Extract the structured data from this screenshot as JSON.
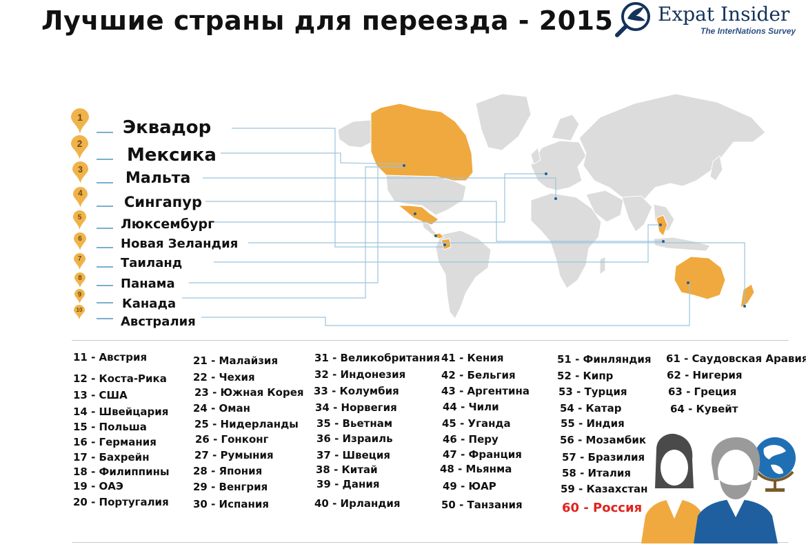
{
  "title": "Лучшие страны для переезда - 2015",
  "logo": {
    "name": "Expat Insider",
    "subtitle": "The InterNations Survey"
  },
  "colors": {
    "highlight": "#f0a93e",
    "land": "#dcdcdc",
    "leader_line": "#9cc3dc",
    "pin": "#f0b34a",
    "russia": "#e0241f"
  },
  "top10": [
    {
      "rank": "1",
      "name": "Эквадор"
    },
    {
      "rank": "2",
      "name": "Мексика"
    },
    {
      "rank": "3",
      "name": "Мальта"
    },
    {
      "rank": "4",
      "name": "Сингапур"
    },
    {
      "rank": "5",
      "name": "Люксембург"
    },
    {
      "rank": "6",
      "name": "Новая Зеландия"
    },
    {
      "rank": "7",
      "name": "Таиланд"
    },
    {
      "rank": "8",
      "name": "Панама"
    },
    {
      "rank": "9",
      "name": "Канада"
    },
    {
      "rank": "10",
      "name": "Австралия"
    }
  ],
  "rest": [
    "11 - Австрия",
    "12 - Коста-Рика",
    "13 - США",
    "14 - Швейцария",
    "15 -  Польша",
    "16 -  Германия",
    "17 -  Бахрейн",
    "18 -  Филиппины",
    "19 -  ОАЭ",
    "20 -  Португалия",
    "21 - Малайзия",
    "22 - Чехия",
    "23 - Южная Корея",
    "24 - Оман",
    "25 - Нидерланды",
    "26 - Гонконг",
    "27 - Румыния",
    "28 - Япония",
    "29 - Венгрия",
    "30 - Испания",
    "31 - Великобритания",
    "32 - Индонезия",
    "33 - Колумбия",
    "34 - Норвегия",
    "35 - Вьетнам",
    "36 - Израиль",
    "37 - Швеция",
    "38 - Китай",
    "39 - Дания",
    "40 - Ирландия",
    "41 - Кения",
    "42 - Бельгия",
    "43 - Аргентина",
    "44 - Чили",
    "45 - Уганда",
    "46 - Перу",
    "47 - Франция",
    "48 - Мьянма",
    "49 - ЮАР",
    "50 - Танзания",
    "51 - Финляндия",
    "52 - Кипр",
    "53 - Турция",
    "54 - Катар",
    "55 - Индия",
    "56 - Мозамбик",
    "57 - Бразилия",
    "58 - Италия",
    "59 - Казахстан",
    "60 - Россия",
    "61 - Саудовская Аравия",
    "62 - Нигерия",
    "63 - Греция",
    "64 - Кувейт"
  ]
}
